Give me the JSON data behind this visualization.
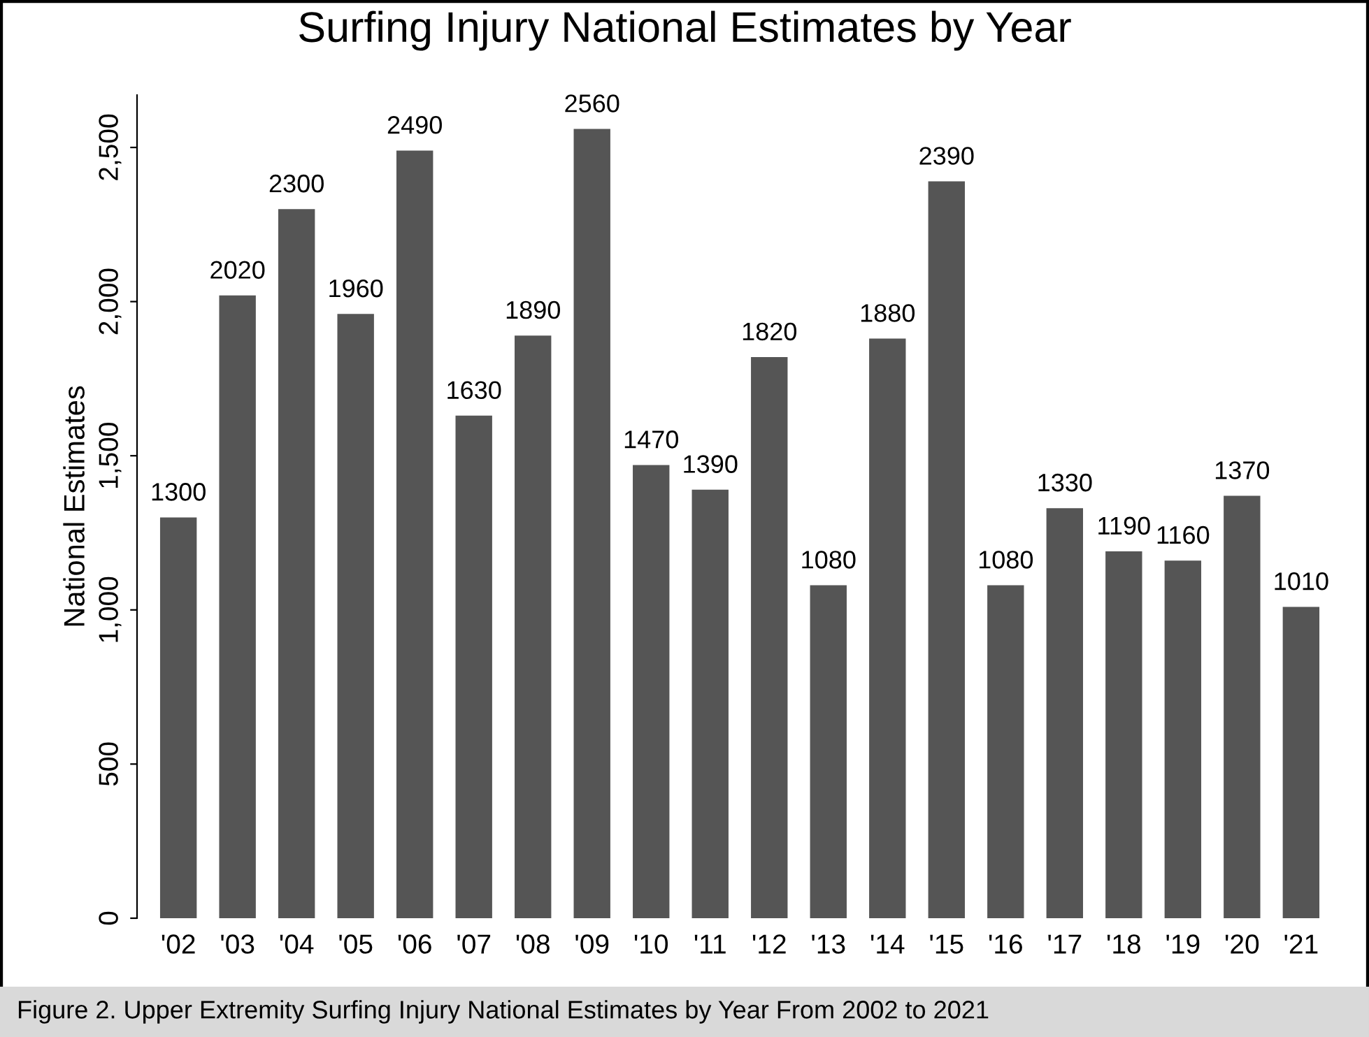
{
  "chart_data": {
    "type": "bar",
    "title": "Surfing Injury National Estimates by Year",
    "ylabel": "National Estimates",
    "categories": [
      "'02",
      "'03",
      "'04",
      "'05",
      "'06",
      "'07",
      "'08",
      "'09",
      "'10",
      "'11",
      "'12",
      "'13",
      "'14",
      "'15",
      "'16",
      "'17",
      "'18",
      "'19",
      "'20",
      "'21"
    ],
    "values": [
      1300,
      2020,
      2300,
      1960,
      2490,
      1630,
      1890,
      2560,
      1470,
      1390,
      1820,
      1080,
      1880,
      2390,
      1080,
      1330,
      1190,
      1160,
      1370,
      1010
    ],
    "color": "#555555",
    "data_labels": true,
    "grid": false,
    "legend": false,
    "ylim": [
      0,
      2670
    ],
    "yticks": [
      0,
      500,
      {
        "value": 1000,
        "label": "1,000"
      },
      {
        "value": 1500,
        "label": "1,500"
      },
      {
        "value": 2000,
        "label": "2,000"
      },
      {
        "value": 2500,
        "label": "2,500"
      }
    ],
    "annotations": [
      "Figure 2. Upper Extremity Surfing Injury National Estimates by Year From 2002 to 2021"
    ]
  }
}
